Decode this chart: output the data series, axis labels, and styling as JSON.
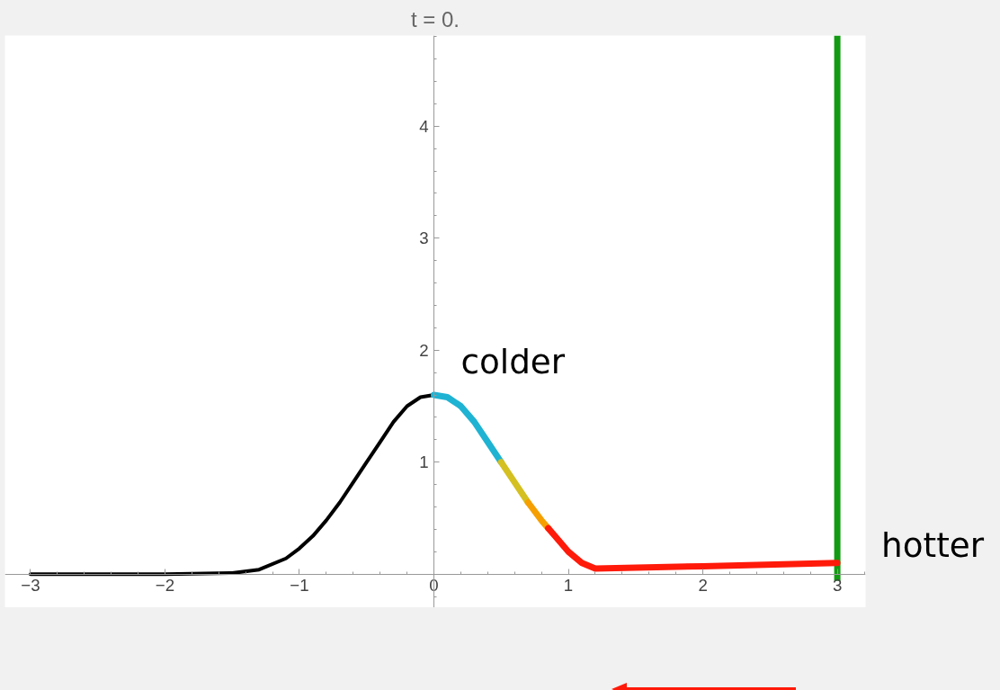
{
  "chart_data": {
    "type": "line",
    "title": "t = 0.",
    "xlim": [
      -3.19,
      3.21
    ],
    "ylim": [
      -0.3,
      4.81
    ],
    "xticks": [
      {
        "value": -3,
        "label": "−3"
      },
      {
        "value": -2,
        "label": "−2"
      },
      {
        "value": -1,
        "label": "−1"
      },
      0,
      1,
      2,
      3
    ],
    "yticks": [
      1,
      2,
      3,
      4
    ],
    "grid": false,
    "series": [
      {
        "color": "#000000",
        "x": [
          -3,
          -2,
          -1.5,
          -1.3,
          -1.1,
          -1,
          -0.9,
          -0.8,
          -0.7,
          -0.6,
          -0.5,
          -0.4,
          -0.3,
          -0.2,
          -0.1,
          0
        ],
        "values": [
          0,
          0,
          0.01,
          0.04,
          0.14,
          0.23,
          0.34,
          0.48,
          0.64,
          0.82,
          1.0,
          1.18,
          1.36,
          1.5,
          1.58,
          1.6
        ]
      },
      {
        "color": "#1fb3d3",
        "x": [
          0,
          0.1,
          0.2,
          0.3,
          0.4,
          0.5
        ],
        "values": [
          1.6,
          1.58,
          1.5,
          1.36,
          1.18,
          1.0
        ]
      },
      {
        "color": "#d4c020",
        "x": [
          0.5,
          0.6,
          0.7
        ],
        "values": [
          1.0,
          0.82,
          0.64
        ]
      },
      {
        "color": "#f5a000",
        "x": [
          0.7,
          0.8,
          0.85
        ],
        "values": [
          0.64,
          0.48,
          0.41
        ]
      },
      {
        "color": "#ff1a0a",
        "x": [
          0.85,
          0.9,
          1,
          1.1,
          1.2,
          2,
          3
        ],
        "values": [
          0.41,
          0.34,
          0.2,
          0.1,
          0.05,
          0.07,
          0.1
        ]
      }
    ],
    "ref_lines": [
      {
        "axis": "x",
        "value": 3,
        "color": "#139a13"
      }
    ],
    "annotations": [
      "colder",
      "hotter"
    ]
  }
}
